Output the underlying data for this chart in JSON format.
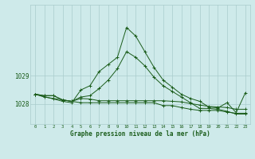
{
  "background_color": "#ceeaea",
  "grid_color": "#aacccc",
  "line_color": "#1a5c1a",
  "xlabel": "Graphe pression niveau de la mer (hPa)",
  "yticks": [
    1028,
    1029
  ],
  "ytick_labels": [
    "1028",
    "1029"
  ],
  "xlim": [
    -0.5,
    23.5
  ],
  "ylim": [
    1027.3,
    1031.5
  ],
  "hours": [
    0,
    1,
    2,
    3,
    4,
    5,
    6,
    7,
    8,
    9,
    10,
    11,
    12,
    13,
    14,
    15,
    16,
    17,
    18,
    19,
    20,
    21,
    22,
    23
  ],
  "series": [
    [
      1028.35,
      null,
      null,
      1028.1,
      1028.05,
      1028.5,
      1028.65,
      1029.15,
      1029.4,
      1029.65,
      1030.7,
      1030.4,
      1029.85,
      1029.3,
      1028.85,
      1028.6,
      1028.35,
      1028.2,
      1028.1,
      1027.9,
      1027.87,
      1028.05,
      1027.7,
      1028.4
    ],
    [
      1028.35,
      1028.3,
      1028.3,
      1028.15,
      1028.1,
      1028.25,
      1028.3,
      1028.55,
      1028.85,
      1029.25,
      1029.85,
      1029.65,
      1029.35,
      1028.95,
      1028.65,
      1028.45,
      1028.25,
      1028.05,
      1027.85,
      1027.85,
      1027.82,
      1027.75,
      1027.65,
      1027.65
    ],
    [
      1028.35,
      1028.25,
      1028.2,
      1028.15,
      1028.1,
      1028.05,
      1028.05,
      1028.05,
      1028.05,
      1028.05,
      1028.05,
      1028.05,
      1028.05,
      1028.05,
      1027.95,
      1027.95,
      1027.88,
      1027.82,
      1027.78,
      1027.78,
      1027.78,
      1027.72,
      1027.68,
      1027.68
    ],
    [
      1028.35,
      1028.3,
      1028.3,
      1028.15,
      1028.1,
      1028.2,
      1028.18,
      1028.12,
      1028.12,
      1028.12,
      1028.12,
      1028.12,
      1028.12,
      1028.12,
      1028.12,
      1028.1,
      1028.08,
      1028.02,
      1027.97,
      1027.92,
      1027.9,
      1027.88,
      1027.82,
      1027.82
    ]
  ]
}
